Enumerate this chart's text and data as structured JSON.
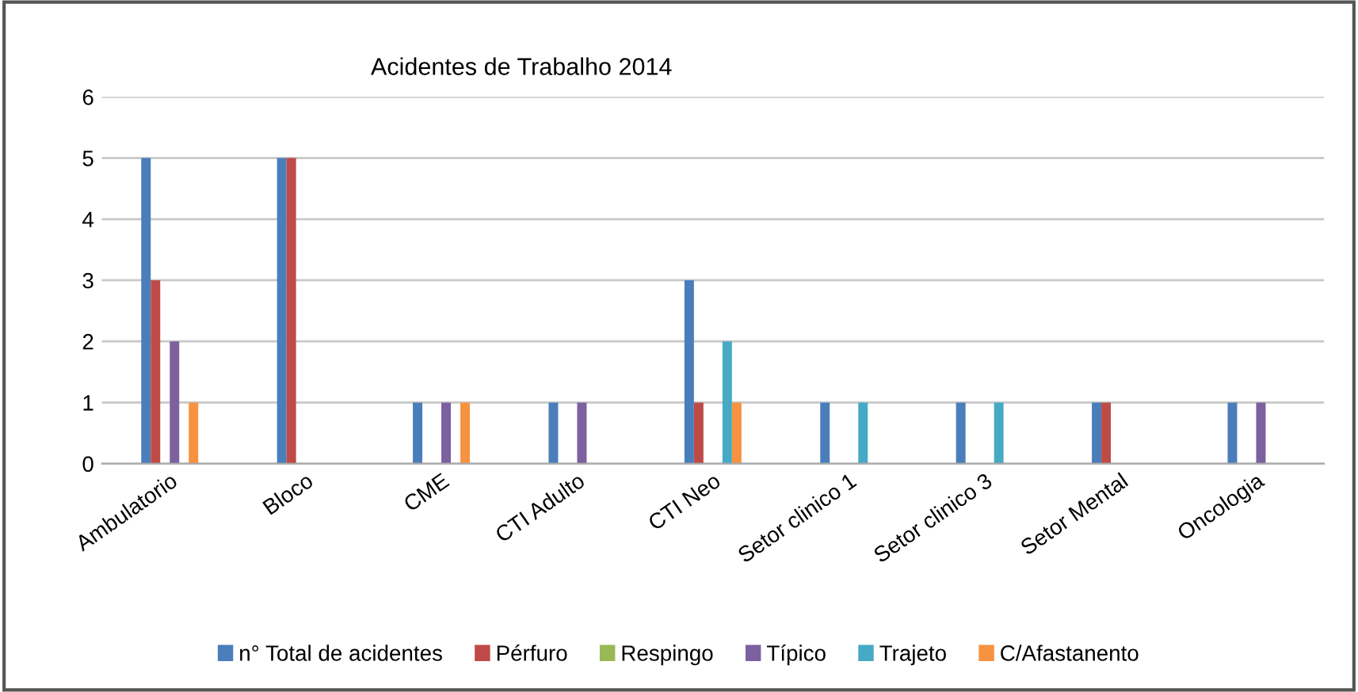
{
  "chart_data": {
    "type": "bar",
    "title": "Acidentes de Trabalho 2014",
    "categories": [
      "Ambulatorio",
      "Bloco",
      "CME",
      "CTI Adulto",
      "CTI Neo",
      "Setor clinico 1",
      "Setor clinico 3",
      "Setor Mental",
      "Oncologia"
    ],
    "series": [
      {
        "name": "n° Total de acidentes",
        "color": "#4a7ebb",
        "values": [
          5,
          5,
          1,
          1,
          3,
          1,
          1,
          1,
          1
        ]
      },
      {
        "name": "Pérfuro",
        "color": "#be4b48",
        "values": [
          3,
          5,
          0,
          0,
          1,
          0,
          0,
          1,
          0
        ]
      },
      {
        "name": "Respingo",
        "color": "#98b954",
        "values": [
          0,
          0,
          0,
          0,
          0,
          0,
          0,
          0,
          0
        ]
      },
      {
        "name": "Típico",
        "color": "#7d60a0",
        "values": [
          2,
          0,
          1,
          1,
          0,
          0,
          0,
          0,
          1
        ]
      },
      {
        "name": "Trajeto",
        "color": "#46aac5",
        "values": [
          0,
          0,
          0,
          0,
          2,
          1,
          1,
          0,
          0
        ]
      },
      {
        "name": "C/Afastanento",
        "color": "#f69240",
        "values": [
          1,
          0,
          1,
          0,
          1,
          0,
          0,
          0,
          0
        ]
      }
    ],
    "ylim": [
      0,
      6
    ],
    "yticks": [
      0,
      1,
      2,
      3,
      4,
      5,
      6
    ],
    "grid": "y",
    "legend": "bottom"
  }
}
